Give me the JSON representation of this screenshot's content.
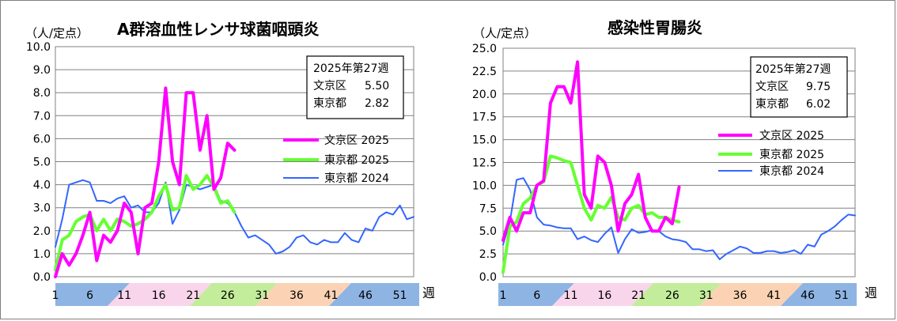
{
  "chart_data": [
    {
      "type": "line",
      "title": "A群溶血性レンサ球菌咽頭炎",
      "ylabel": "（人/定点）",
      "xlabel": "週",
      "ylim": [
        0,
        10
      ],
      "yticks": [
        "0.0",
        "1.0",
        "2.0",
        "3.0",
        "4.0",
        "5.0",
        "6.0",
        "7.0",
        "8.0",
        "9.0",
        "10.0"
      ],
      "xlim": [
        1,
        53
      ],
      "xticks": [
        "1",
        "6",
        "11",
        "16",
        "21",
        "26",
        "31",
        "36",
        "41",
        "46",
        "51"
      ],
      "infobox": {
        "heading": "2025年第27週",
        "rows": [
          {
            "label": "文京区",
            "value": "5.50"
          },
          {
            "label": "東京都",
            "value": "2.82"
          }
        ]
      },
      "series": [
        {
          "name": "文京区 2025",
          "color": "#ff00ff",
          "x": [
            1,
            2,
            3,
            4,
            5,
            6,
            7,
            8,
            9,
            10,
            11,
            12,
            13,
            14,
            15,
            16,
            17,
            18,
            19,
            20,
            21,
            22,
            23,
            24,
            25,
            26,
            27
          ],
          "values": [
            0,
            1.0,
            0.5,
            1.0,
            1.8,
            2.8,
            0.7,
            1.8,
            1.5,
            2.0,
            3.2,
            2.8,
            1.0,
            3.0,
            3.2,
            5.0,
            8.2,
            5.0,
            4.0,
            8.0,
            8.0,
            5.5,
            7.0,
            3.8,
            4.3,
            5.8,
            5.5
          ]
        },
        {
          "name": "東京都 2025",
          "color": "#66ff33",
          "x": [
            1,
            2,
            3,
            4,
            5,
            6,
            7,
            8,
            9,
            10,
            11,
            12,
            13,
            14,
            15,
            16,
            17,
            18,
            19,
            20,
            21,
            22,
            23,
            24,
            25,
            26,
            27
          ],
          "values": [
            0.3,
            1.6,
            1.8,
            2.4,
            2.6,
            2.7,
            2.0,
            2.5,
            2.0,
            2.5,
            2.4,
            2.2,
            2.3,
            2.5,
            2.8,
            3.5,
            4.0,
            2.9,
            3.0,
            4.4,
            3.8,
            4.0,
            4.4,
            3.9,
            3.2,
            3.3,
            2.8
          ]
        },
        {
          "name": "東京都 2024",
          "color": "#3366ff",
          "x": [
            1,
            2,
            3,
            4,
            5,
            6,
            7,
            8,
            9,
            10,
            11,
            12,
            13,
            14,
            15,
            16,
            17,
            18,
            19,
            20,
            21,
            22,
            23,
            24,
            25,
            26,
            27,
            28,
            29,
            30,
            31,
            32,
            33,
            34,
            35,
            36,
            37,
            38,
            39,
            40,
            41,
            42,
            43,
            44,
            45,
            46,
            47,
            48,
            49,
            50,
            51,
            52,
            53
          ],
          "values": [
            1.3,
            2.5,
            4.0,
            4.1,
            4.2,
            4.1,
            3.3,
            3.3,
            3.2,
            3.4,
            3.5,
            3.0,
            3.1,
            2.8,
            2.8,
            3.2,
            4.1,
            2.3,
            2.9,
            4.0,
            3.9,
            3.8,
            3.9,
            4.0,
            3.3,
            3.2,
            2.8,
            2.2,
            1.7,
            1.8,
            1.6,
            1.4,
            1.0,
            1.1,
            1.3,
            1.7,
            1.8,
            1.5,
            1.4,
            1.6,
            1.5,
            1.5,
            1.9,
            1.6,
            1.5,
            2.1,
            2.0,
            2.6,
            2.8,
            2.7,
            3.1,
            2.5,
            2.6
          ]
        }
      ]
    },
    {
      "type": "line",
      "title": "感染性胃腸炎",
      "ylabel": "（人/定点）",
      "xlabel": "週",
      "ylim": [
        0,
        25
      ],
      "yticks": [
        "0.0",
        "2.5",
        "5.0",
        "7.5",
        "10.0",
        "12.5",
        "15.0",
        "17.5",
        "20.0",
        "22.5",
        "25.0"
      ],
      "xlim": [
        1,
        53
      ],
      "xticks": [
        "1",
        "6",
        "11",
        "16",
        "21",
        "26",
        "31",
        "36",
        "41",
        "46",
        "51"
      ],
      "infobox": {
        "heading": "2025年第27週",
        "rows": [
          {
            "label": "文京区",
            "value": "9.75"
          },
          {
            "label": "東京都",
            "value": "6.02"
          }
        ]
      },
      "series": [
        {
          "name": "文京区 2025",
          "color": "#ff00ff",
          "x": [
            1,
            2,
            3,
            4,
            5,
            6,
            7,
            8,
            9,
            10,
            11,
            12,
            13,
            14,
            15,
            16,
            17,
            18,
            19,
            20,
            21,
            22,
            23,
            24,
            25,
            26,
            27
          ],
          "values": [
            4.0,
            6.5,
            5.0,
            7.0,
            7.0,
            10.0,
            10.5,
            19.0,
            20.8,
            20.8,
            19.0,
            23.5,
            9.0,
            7.5,
            13.2,
            12.5,
            10.0,
            5.0,
            8.0,
            9.0,
            11.2,
            6.5,
            5.0,
            5.0,
            6.5,
            5.8,
            9.8
          ]
        },
        {
          "name": "東京都 2025",
          "color": "#66ff33",
          "x": [
            1,
            2,
            3,
            4,
            5,
            6,
            7,
            8,
            9,
            10,
            11,
            12,
            13,
            14,
            15,
            16,
            17,
            18,
            19,
            20,
            21,
            22,
            23,
            24,
            25,
            26,
            27
          ],
          "values": [
            0.5,
            5.5,
            6.0,
            8.0,
            8.6,
            10.0,
            10.4,
            13.2,
            13.0,
            12.7,
            12.5,
            10.0,
            7.5,
            6.2,
            7.8,
            7.5,
            8.7,
            6.5,
            6.2,
            7.5,
            7.8,
            6.8,
            7.0,
            6.5,
            6.5,
            6.2,
            6.0
          ]
        },
        {
          "name": "東京都 2024",
          "color": "#3366ff",
          "x": [
            1,
            2,
            3,
            4,
            5,
            6,
            7,
            8,
            9,
            10,
            11,
            12,
            13,
            14,
            15,
            16,
            17,
            18,
            19,
            20,
            21,
            22,
            23,
            24,
            25,
            26,
            27,
            28,
            29,
            30,
            31,
            32,
            33,
            34,
            35,
            36,
            37,
            38,
            39,
            40,
            41,
            42,
            43,
            44,
            45,
            46,
            47,
            48,
            49,
            50,
            51,
            52,
            53
          ],
          "values": [
            3.5,
            6.0,
            10.6,
            10.8,
            9.5,
            6.5,
            5.7,
            5.6,
            5.4,
            5.3,
            5.3,
            4.1,
            4.4,
            4.0,
            3.8,
            4.7,
            5.4,
            2.6,
            4.1,
            5.2,
            4.8,
            4.9,
            5.1,
            5.0,
            4.4,
            4.1,
            4.0,
            3.8,
            3.0,
            3.0,
            2.8,
            2.9,
            1.9,
            2.5,
            2.9,
            3.3,
            3.1,
            2.6,
            2.6,
            2.8,
            2.8,
            2.6,
            2.7,
            2.9,
            2.5,
            3.5,
            3.3,
            4.6,
            5.0,
            5.5,
            6.2,
            6.8,
            6.7
          ]
        }
      ]
    }
  ]
}
